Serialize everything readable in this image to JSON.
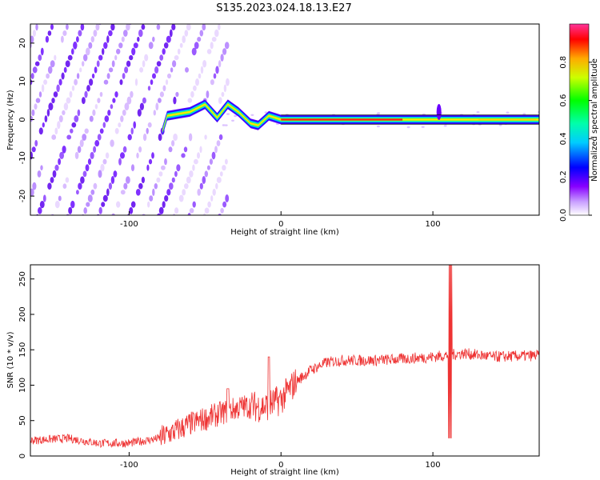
{
  "title": "S135.2023.024.18.13.E27",
  "chart_data": [
    {
      "type": "heatmap",
      "xlabel": "Height of straight line (km)",
      "ylabel": "Frequency (Hz)",
      "xlim": [
        -165,
        170
      ],
      "ylim": [
        -25,
        25
      ],
      "xticks": [
        -100,
        0,
        100
      ],
      "yticks": [
        -20,
        -10,
        0,
        10,
        20
      ],
      "colorbar": {
        "label": "Normalized spectral amplitude",
        "range": [
          0,
          1
        ],
        "ticks": [
          "0.0",
          "0.2",
          "0.4",
          "0.6",
          "0.8"
        ],
        "colormap": [
          "#ffffff",
          "#9900ff",
          "#0000ff",
          "#00ffff",
          "#00ff00",
          "#ffff00",
          "#ff0000",
          "#ff66aa"
        ]
      },
      "ridge": {
        "x_start": -80,
        "x_end": 170,
        "frequency": [
          [
            -78,
            -3
          ],
          [
            -75,
            1
          ],
          [
            -60,
            2
          ],
          [
            -50,
            4
          ],
          [
            -42,
            0.5
          ],
          [
            -35,
            4
          ],
          [
            -28,
            2
          ],
          [
            -20,
            -1
          ],
          [
            -15,
            -1.5
          ],
          [
            -8,
            1
          ],
          [
            0,
            0
          ],
          [
            170,
            0
          ]
        ]
      },
      "diagonal_stripes": {
        "x_range": [
          -165,
          -35
        ],
        "count": 14,
        "slope_hz_per_km": 1.0
      }
    },
    {
      "type": "line",
      "xlabel": "Height of straight line (km)",
      "ylabel": "SNR (10 * v/v)",
      "xlim": [
        -165,
        170
      ],
      "ylim": [
        0,
        270
      ],
      "xticks": [
        -100,
        0,
        100
      ],
      "yticks": [
        0,
        50,
        100,
        150,
        200,
        250
      ],
      "color": "#ee3333",
      "trend": [
        [
          -165,
          22
        ],
        [
          -140,
          25
        ],
        [
          -120,
          18
        ],
        [
          -100,
          18
        ],
        [
          -80,
          25
        ],
        [
          -60,
          45
        ],
        [
          -40,
          60
        ],
        [
          -25,
          70
        ],
        [
          -10,
          70
        ],
        [
          0,
          80
        ],
        [
          10,
          105
        ],
        [
          20,
          122
        ],
        [
          30,
          132
        ],
        [
          40,
          135
        ],
        [
          60,
          135
        ],
        [
          80,
          137
        ],
        [
          100,
          140
        ],
        [
          120,
          145
        ],
        [
          140,
          140
        ],
        [
          170,
          142
        ]
      ],
      "spikes": [
        [
          -35,
          95
        ],
        [
          -10,
          135
        ],
        [
          112,
          270
        ],
        [
          111,
          30
        ]
      ]
    }
  ]
}
